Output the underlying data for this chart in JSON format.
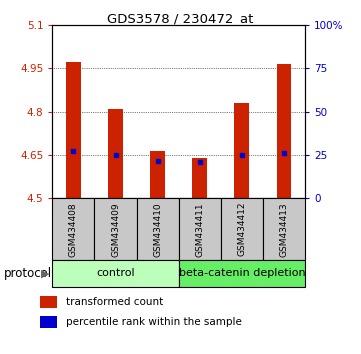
{
  "title": "GDS3578 / 230472_at",
  "samples": [
    "GSM434408",
    "GSM434409",
    "GSM434410",
    "GSM434411",
    "GSM434412",
    "GSM434413"
  ],
  "bar_bottom": 4.5,
  "bar_tops": [
    4.972,
    4.807,
    4.662,
    4.638,
    4.828,
    4.963
  ],
  "blue_marks": [
    4.663,
    4.648,
    4.63,
    4.624,
    4.651,
    4.657
  ],
  "ylim": [
    4.5,
    5.1
  ],
  "yticks_left": [
    4.5,
    4.65,
    4.8,
    4.95,
    5.1
  ],
  "yticks_right_vals": [
    0,
    25,
    50,
    75,
    100
  ],
  "yticks_right_labels": [
    "0",
    "25",
    "50",
    "75",
    "100%"
  ],
  "bar_color": "#cc2200",
  "blue_color": "#0000cc",
  "control_color": "#bbffbb",
  "depletion_color": "#66ee66",
  "control_label": "control",
  "depletion_label": "beta-catenin depletion",
  "protocol_label": "protocol",
  "legend_red": "transformed count",
  "legend_blue": "percentile rank within the sample",
  "background_label": "#c8c8c8"
}
